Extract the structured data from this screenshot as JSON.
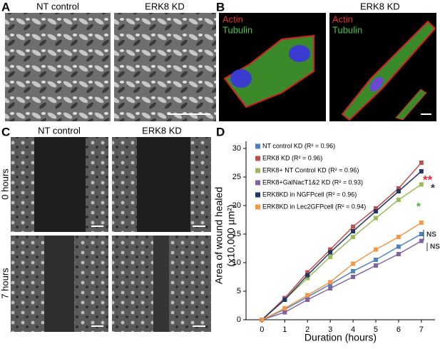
{
  "panels": {
    "a": {
      "label": "A",
      "left": "NT control",
      "right": "ERK8 KD"
    },
    "b": {
      "label": "B",
      "left": "NT control",
      "right": "ERK8 KD",
      "stain1": "Actin",
      "stain2": "Tubulin"
    },
    "c": {
      "label": "C",
      "left": "NT control",
      "right": "ERK8 KD",
      "row1": "0 hours",
      "row2": "7 hours"
    },
    "d": {
      "label": "D"
    }
  },
  "chart_data": {
    "type": "line",
    "x_label": "Duration (hours)",
    "y_label": "Area of wound healed",
    "y_label2": "(x10,000 µm²)",
    "x": [
      0,
      1,
      2,
      3,
      4,
      5,
      6,
      7
    ],
    "xlim": [
      -0.7,
      7.6
    ],
    "xticks": [
      0,
      1,
      2,
      3,
      4,
      5,
      6,
      7
    ],
    "ylim": [
      0,
      30
    ],
    "yticks": [
      0,
      5,
      10,
      15,
      20,
      25,
      30
    ],
    "series": [
      {
        "name": "NT control KD (R² = 0.96)",
        "color": "#4f81bd",
        "values": [
          0,
          1.8,
          4.0,
          6.2,
          8.5,
          10.5,
          12.8,
          15.0
        ]
      },
      {
        "name": "ERK8 KD (R² = 0.96)",
        "color": "#c0504d",
        "values": [
          0,
          3.8,
          8.3,
          12.3,
          16.3,
          19.5,
          23.0,
          27.5
        ]
      },
      {
        "name": "ERK8+ NT Control KD (R² = 0.96)",
        "color": "#9bbb59",
        "values": [
          0,
          3.5,
          7.3,
          11.0,
          14.5,
          17.8,
          21.0,
          23.7
        ]
      },
      {
        "name": "ERK8+GalNacT1&2 KD (R² = 0.93)",
        "color": "#8064a2",
        "values": [
          0,
          1.3,
          3.5,
          5.5,
          7.5,
          9.5,
          11.5,
          13.8
        ]
      },
      {
        "name": "ERK8KD in NGFPcell (R² = 0.96)",
        "color": "#1f3864",
        "values": [
          0,
          3.5,
          7.8,
          11.8,
          15.5,
          19.0,
          22.5,
          26.0
        ]
      },
      {
        "name": "ERK8KD in Lec2GFPcell (R² = 0.94)",
        "color": "#f79646",
        "values": [
          0,
          2.0,
          4.3,
          6.6,
          9.8,
          12.3,
          14.5,
          17.0
        ]
      }
    ],
    "annotations": [
      {
        "text": "**",
        "color": "#e0303a"
      },
      {
        "text": "*",
        "color": "#1f3864"
      },
      {
        "text": "*",
        "color": "#4caf3c"
      },
      {
        "text": "NS",
        "color": "#333333"
      },
      {
        "text": "NS",
        "color": "#333333"
      }
    ]
  }
}
